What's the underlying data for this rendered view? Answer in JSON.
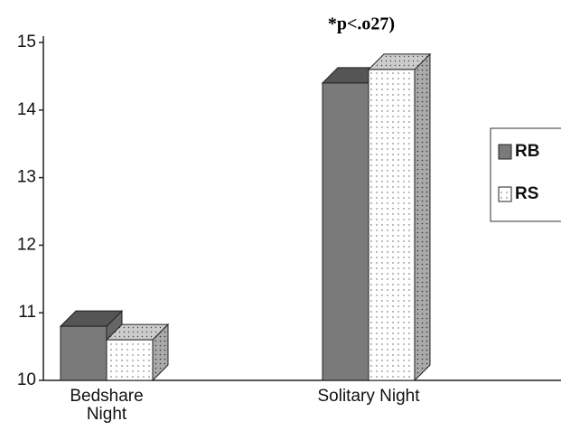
{
  "chart_data": {
    "type": "bar3d",
    "annotation": "*p<.o27)",
    "categories": [
      "Bedshare Night",
      "Solitary Night"
    ],
    "series": [
      {
        "name": "RB",
        "color": "#7a7a7a",
        "values": [
          10.8,
          14.4
        ]
      },
      {
        "name": "RS",
        "color": "#ffffff",
        "values": [
          10.6,
          14.6
        ]
      }
    ],
    "ylim": [
      10,
      15
    ],
    "yticks": [
      10,
      11,
      12,
      13,
      14,
      15
    ],
    "legend": "right"
  }
}
